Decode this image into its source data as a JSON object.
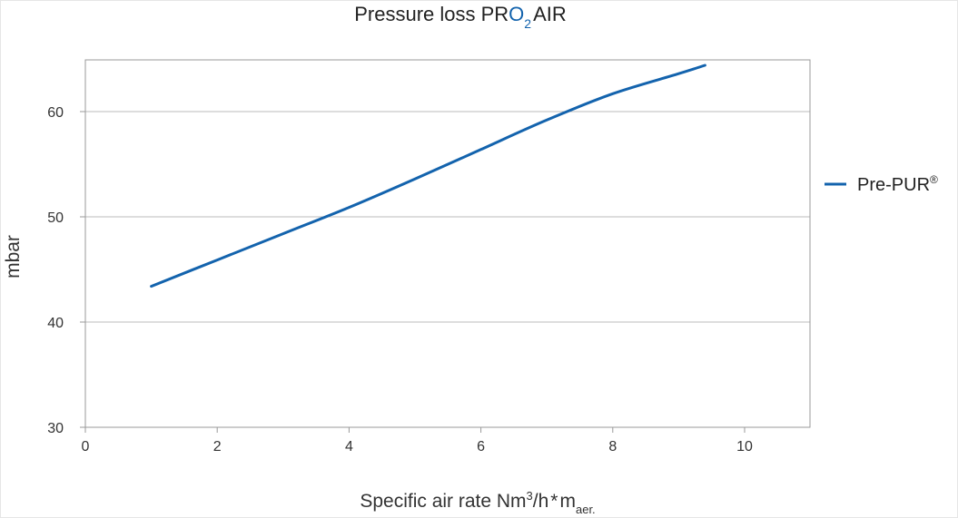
{
  "chart_data": {
    "type": "line",
    "title": {
      "prefix": "Pressure loss ",
      "brand_pr": "PR",
      "brand_o": "O",
      "brand_sub": "2",
      "brand_air": "AIR"
    },
    "xlabel": {
      "main": "Specific air rate Nm",
      "sup": "3",
      "mid": "/h",
      "star": "*",
      "m": "m",
      "sub": "aer."
    },
    "ylabel": "mbar",
    "xlim": [
      0,
      11
    ],
    "ylim": [
      30,
      65
    ],
    "xticks": [
      0,
      2,
      4,
      6,
      8,
      10
    ],
    "xtick_labels": [
      "0",
      "2",
      "4",
      "6",
      "8",
      "10"
    ],
    "yticks": [
      30,
      40,
      50,
      60
    ],
    "ytick_labels": [
      "30",
      "40",
      "50",
      "60"
    ],
    "grid": "horizontal",
    "legend_position": "right",
    "series": [
      {
        "name": "Pre-PUR",
        "name_sup": "®",
        "color": "#1363ad",
        "x": [
          1.0,
          2.0,
          3.0,
          4.0,
          5.0,
          6.0,
          7.0,
          8.0,
          9.0,
          9.4
        ],
        "y": [
          43.4,
          45.9,
          48.4,
          50.9,
          53.6,
          56.4,
          59.2,
          61.7,
          63.6,
          64.4
        ]
      }
    ],
    "colors": {
      "accent": "#1363ad",
      "grid": "#bbbbbb",
      "axis": "#999999"
    }
  }
}
